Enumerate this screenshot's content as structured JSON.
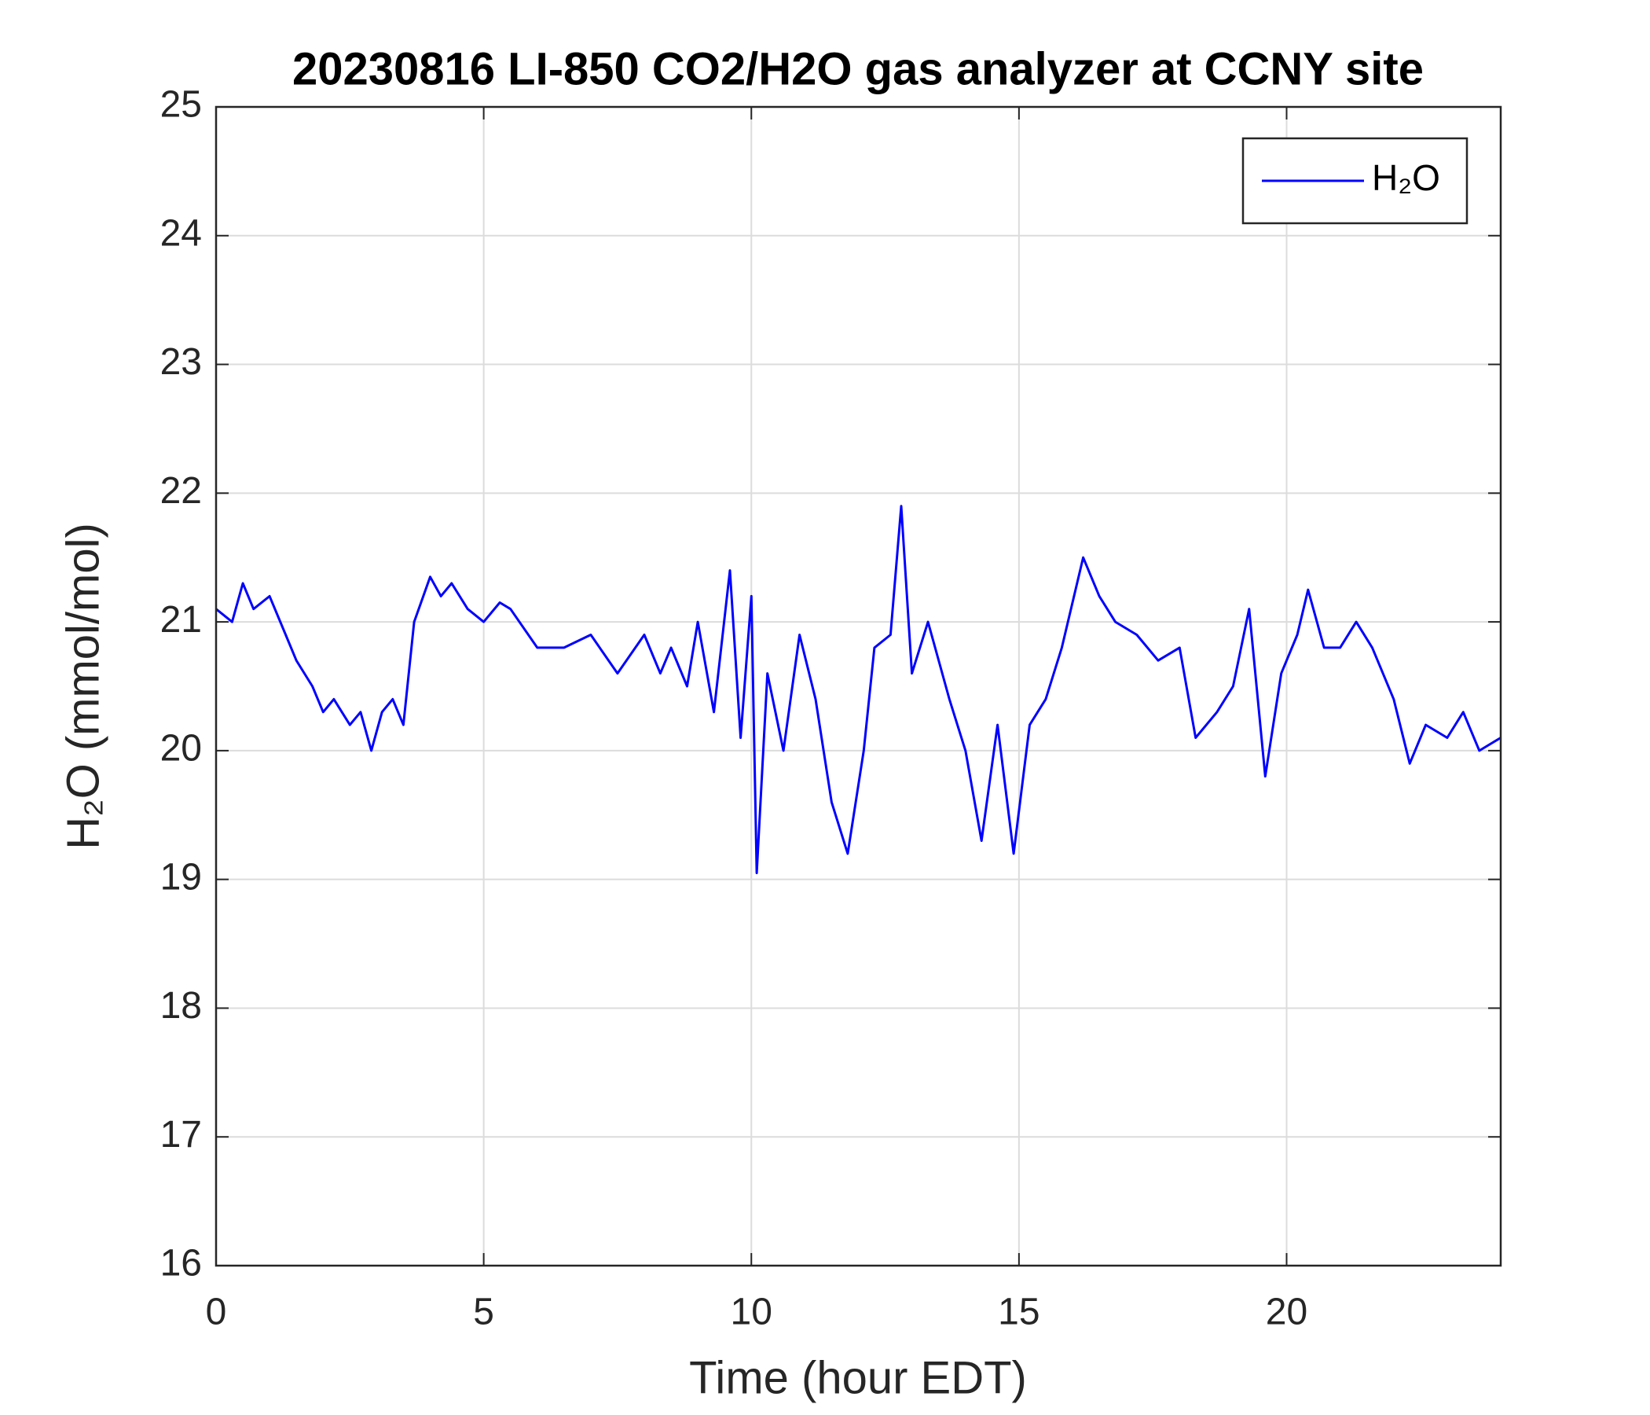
{
  "chart_data": {
    "type": "line",
    "title": "20230816 LI-850 CO2/H2O gas analyzer at CCNY site",
    "xlabel": "Time (hour EDT)",
    "ylabel": "H₂O (mmol/mol)",
    "x": [
      0,
      0.3,
      0.5,
      0.7,
      1.0,
      1.3,
      1.5,
      1.8,
      2.0,
      2.2,
      2.5,
      2.7,
      2.9,
      3.1,
      3.3,
      3.5,
      3.7,
      4.0,
      4.2,
      4.4,
      4.7,
      5.0,
      5.3,
      5.5,
      6.0,
      6.5,
      7.0,
      7.5,
      8.0,
      8.3,
      8.5,
      8.8,
      9.0,
      9.3,
      9.6,
      9.8,
      10.0,
      10.1,
      10.3,
      10.6,
      10.9,
      11.2,
      11.5,
      11.8,
      12.1,
      12.3,
      12.6,
      12.8,
      13.0,
      13.3,
      13.7,
      14.0,
      14.3,
      14.6,
      14.9,
      15.2,
      15.5,
      15.8,
      16.2,
      16.5,
      16.8,
      17.2,
      17.6,
      18.0,
      18.3,
      18.7,
      19.0,
      19.3,
      19.6,
      19.9,
      20.2,
      20.4,
      20.7,
      21.0,
      21.3,
      21.6,
      22.0,
      22.3,
      22.6,
      23.0,
      23.3,
      23.6,
      24.0
    ],
    "series": [
      {
        "name": "H₂O",
        "color": "#0000ff",
        "values": [
          21.1,
          21.0,
          21.3,
          21.1,
          21.2,
          20.9,
          20.7,
          20.5,
          20.3,
          20.4,
          20.2,
          20.3,
          20.0,
          20.3,
          20.4,
          20.2,
          21.0,
          21.35,
          21.2,
          21.3,
          21.1,
          21.0,
          21.15,
          21.1,
          20.8,
          20.8,
          20.9,
          20.6,
          20.9,
          20.6,
          20.8,
          20.5,
          21.0,
          20.3,
          21.4,
          20.1,
          21.2,
          19.05,
          20.6,
          20.0,
          20.9,
          20.4,
          19.6,
          19.2,
          20.0,
          20.8,
          20.9,
          21.9,
          20.6,
          21.0,
          20.4,
          20.0,
          19.3,
          20.2,
          19.2,
          20.2,
          20.4,
          20.8,
          21.5,
          21.2,
          21.0,
          20.9,
          20.7,
          20.8,
          20.1,
          20.3,
          20.5,
          21.1,
          19.8,
          20.6,
          20.9,
          21.25,
          20.8,
          20.8,
          21.0,
          20.8,
          20.4,
          19.9,
          20.2,
          20.1,
          20.3,
          20.0,
          20.1
        ]
      }
    ],
    "xlim": [
      0,
      24
    ],
    "xticks": [
      0,
      5,
      10,
      15,
      20
    ],
    "ylim": [
      16,
      25
    ],
    "yticks": [
      16,
      17,
      18,
      19,
      20,
      21,
      22,
      23,
      24,
      25
    ],
    "grid": true,
    "legend": "upper right"
  }
}
